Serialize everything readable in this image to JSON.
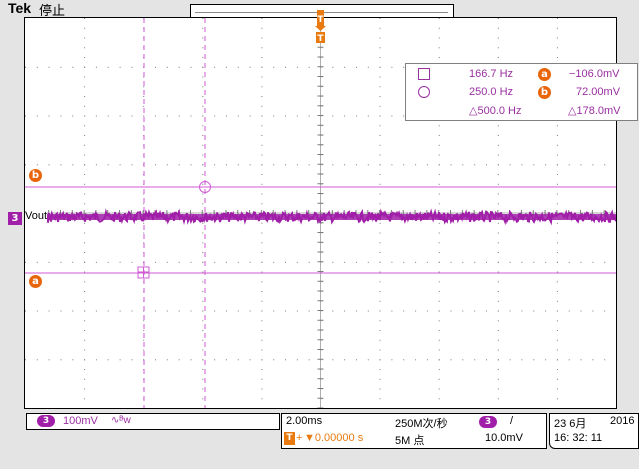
{
  "header": {
    "brand": "Tek",
    "status": "停止",
    "trigger_marker": "T"
  },
  "measurements": {
    "row1": {
      "freq": "166.7 Hz",
      "marker": "a",
      "value": "−106.0mV"
    },
    "row2": {
      "freq": "250.0 Hz",
      "marker": "b",
      "value": "72.00mV"
    },
    "row3": {
      "delta_freq": "△500.0 Hz",
      "delta_value": "△178.0mV"
    }
  },
  "channel": {
    "number": "3",
    "label": "Vout"
  },
  "cursors": {
    "a": "a",
    "b": "b"
  },
  "footer": {
    "channel_number": "3",
    "scale": "100mV",
    "coupling_glyph": "∿ᴮw",
    "timebase": "2.00ms",
    "trigger_time": "▼0.00000 s",
    "sample_rate": "250M次/秒",
    "record_length": "5M 点",
    "trigger_channel": "3",
    "trigger_slope": "/",
    "trigger_level": "10.0mV",
    "date": "23 6月",
    "year": "2016",
    "time": "16: 32: 11"
  },
  "colors": {
    "trace": "#a01fa8",
    "cursor": "#d05ad6",
    "marker": "#e8650a",
    "trigger": "#e87a10"
  }
}
